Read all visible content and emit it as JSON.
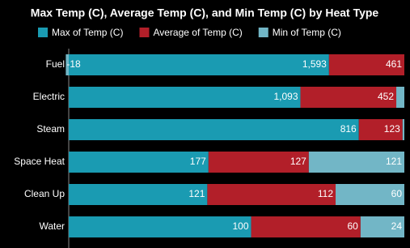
{
  "chart_data": {
    "type": "stacked_bar_100_horizontal",
    "title": "Max Temp (C), Average Temp (C), and Min Temp (C) by Heat Type",
    "categories": [
      "Fuel",
      "Electric",
      "Steam",
      "Space Heat",
      "Clean Up",
      "Water"
    ],
    "series": [
      {
        "name": "Max of Temp (C)",
        "color": "#1a9bb2",
        "values": [
          1593,
          1093,
          816,
          177,
          121,
          100
        ],
        "value_labels": [
          "1,593",
          "1,093",
          "816",
          "177",
          "121",
          "100"
        ]
      },
      {
        "name": "Average of Temp (C)",
        "color": "#b21f29",
        "values": [
          461,
          452,
          123,
          127,
          112,
          60
        ],
        "value_labels": [
          "461",
          "452",
          "123",
          "127",
          "112",
          "60"
        ]
      },
      {
        "name": "Min of Temp (C)",
        "color": "#72b6c6",
        "values": [
          -18,
          38,
          5,
          121,
          60,
          24
        ],
        "value_labels": [
          "-18",
          null,
          null,
          "121",
          "60",
          "24"
        ]
      }
    ]
  }
}
